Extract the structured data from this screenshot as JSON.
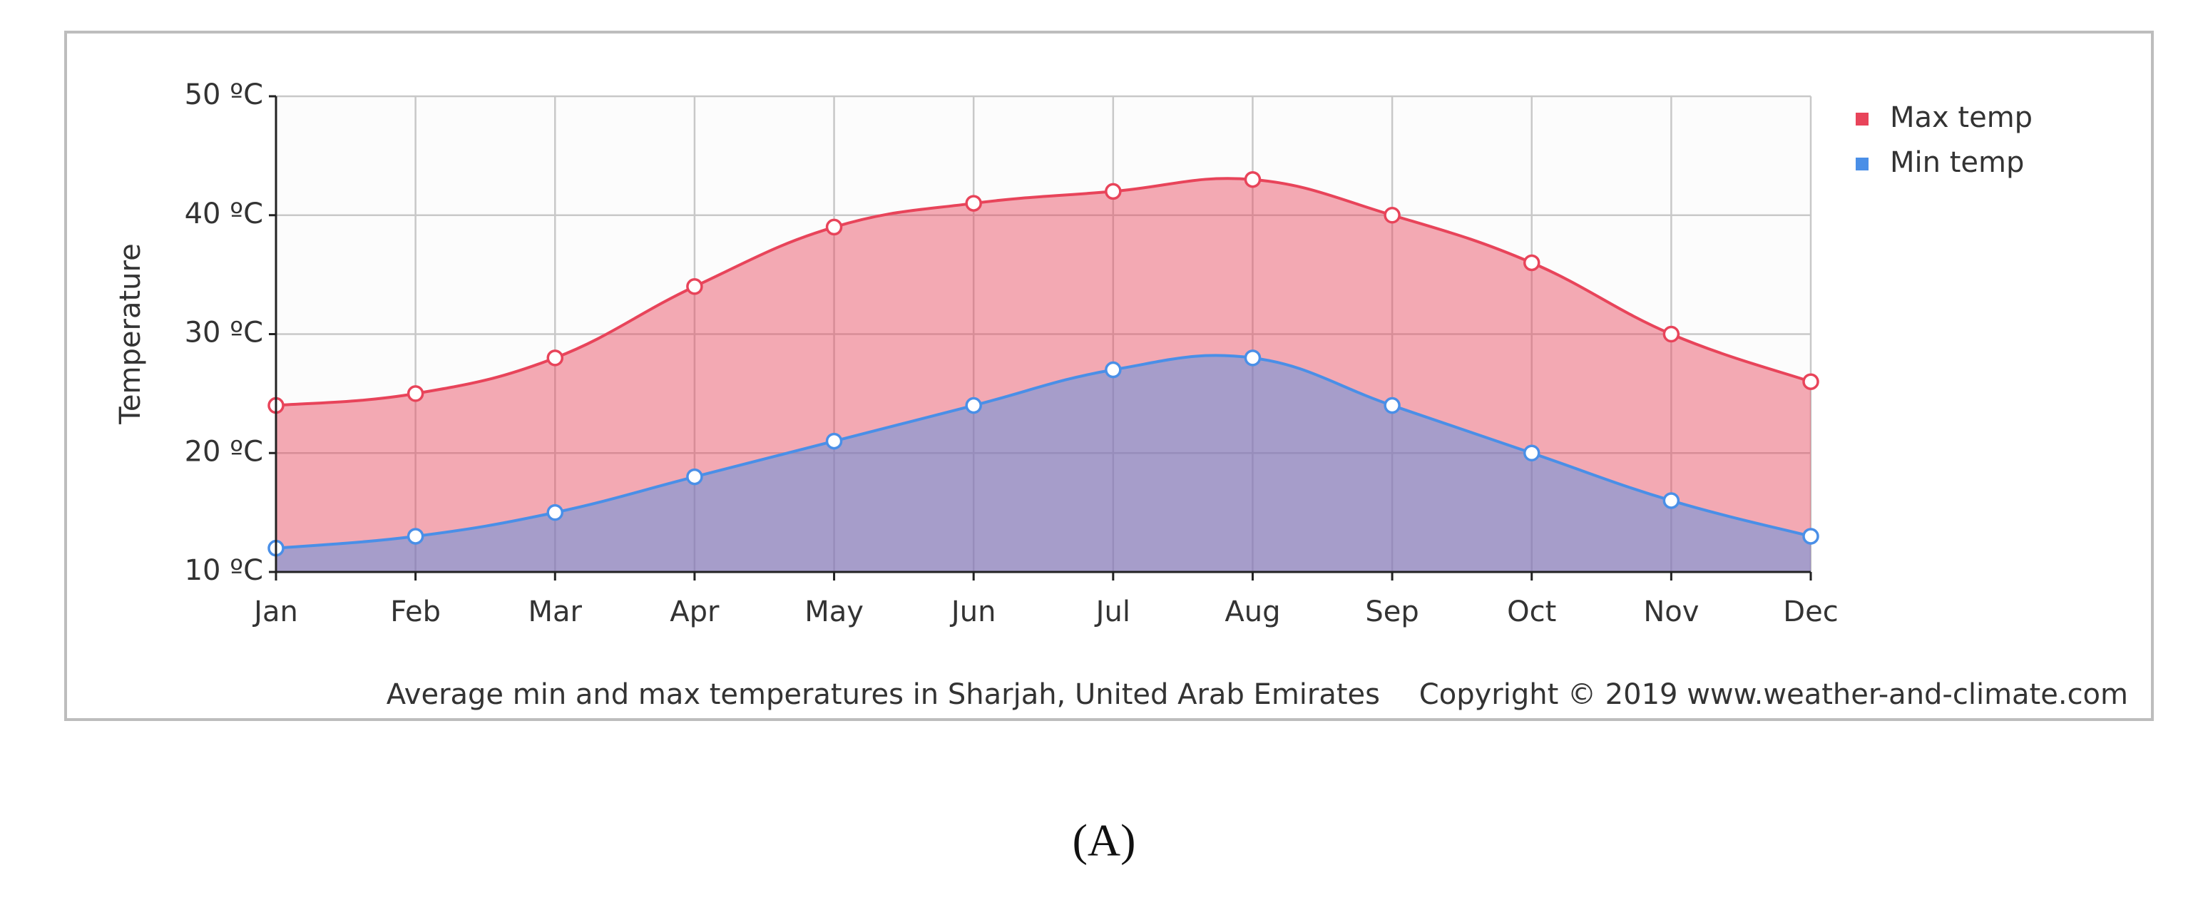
{
  "chart_data": {
    "type": "area",
    "y_label": "Temperature",
    "categories": [
      "Jan",
      "Feb",
      "Mar",
      "Apr",
      "May",
      "Jun",
      "Jul",
      "Aug",
      "Sep",
      "Oct",
      "Nov",
      "Dec"
    ],
    "series": [
      {
        "name": "Max temp",
        "color": "#e8445a",
        "values": [
          24,
          25,
          28,
          34,
          39,
          41,
          42,
          43,
          40,
          36,
          30,
          26
        ]
      },
      {
        "name": "Min temp",
        "color": "#4a8fe7",
        "values": [
          12,
          13,
          15,
          18,
          21,
          24,
          27,
          28,
          24,
          20,
          16,
          13
        ]
      }
    ],
    "ylim": [
      10,
      50
    ],
    "yticks": [
      {
        "value": 10,
        "label": "10 ºC"
      },
      {
        "value": 20,
        "label": "20 ºC"
      },
      {
        "value": 30,
        "label": "30 ºC"
      },
      {
        "value": 40,
        "label": "40 ºC"
      },
      {
        "value": 50,
        "label": "50 ºC"
      }
    ],
    "grid": true,
    "legend": "top-right",
    "caption": "Average min and max temperatures in Sharjah, United Arab Emirates",
    "copyright": "Copyright © 2019 www.weather-and-climate.com",
    "panel_label": "(A)"
  }
}
